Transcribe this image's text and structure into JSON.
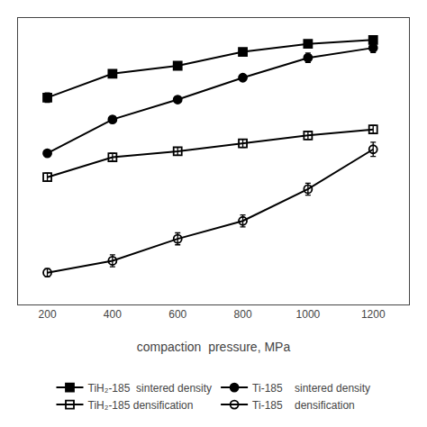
{
  "chart_data": {
    "type": "line",
    "xlabel": "compaction  pressure, MPa",
    "x": [
      200,
      400,
      600,
      800,
      1000,
      1200
    ],
    "series": [
      {
        "name": "TiH₂-185  sintered density",
        "color": "black",
        "marker": "square",
        "values": [
          0.74,
          0.8,
          0.82,
          0.855,
          0.875,
          0.885
        ],
        "errors": [
          0.012,
          0.0,
          0.008,
          0.008,
          0.008,
          0.008
        ]
      },
      {
        "name": "Ti-185    sintered density",
        "color": "black",
        "marker": "circle",
        "values": [
          0.6,
          0.685,
          0.735,
          0.79,
          0.84,
          0.865
        ],
        "errors": [
          0.0,
          0.0,
          0.0,
          0.0,
          0.012,
          0.012
        ]
      },
      {
        "name": "TiH₂-185 densification",
        "color": "black",
        "marker": "square-open",
        "values": [
          0.54,
          0.59,
          0.605,
          0.625,
          0.645,
          0.66
        ],
        "errors": [
          0.01,
          0.01,
          0.01,
          0.01,
          0.01,
          0.01
        ]
      },
      {
        "name": "Ti-185    densification",
        "color": "black",
        "marker": "circle-open",
        "values": [
          0.3,
          0.33,
          0.385,
          0.43,
          0.51,
          0.61
        ],
        "errors": [
          0.01,
          0.015,
          0.015,
          0.015,
          0.015,
          0.018
        ]
      }
    ],
    "xlim": [
      110,
      1310
    ],
    "xticks": [
      200,
      400,
      600,
      800,
      1000,
      1200
    ],
    "ylim": [
      0.22,
      0.94
    ],
    "tick_labels": "x",
    "grid": false,
    "legend": "bottom"
  }
}
